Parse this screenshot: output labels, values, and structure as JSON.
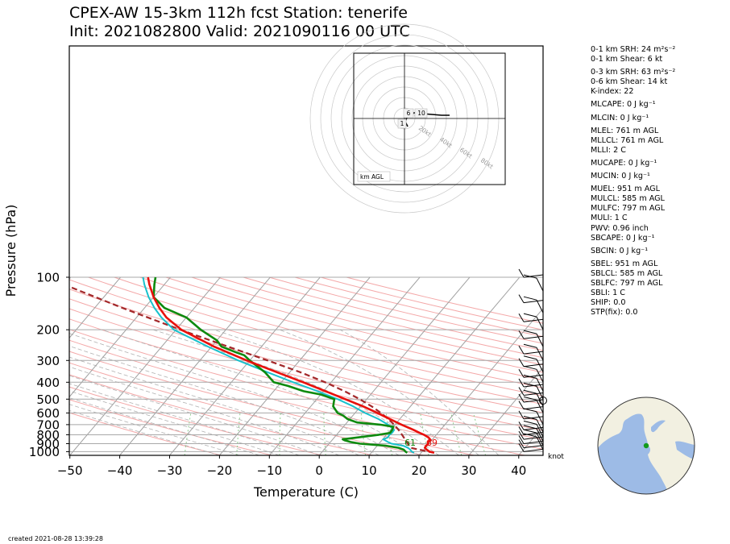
{
  "header": {
    "title_line1": "CPEX-AW 15-3km  112h fcst  Station: tenerife",
    "title_line2": "Init: 2021082800  Valid: 2021090116 00 UTC"
  },
  "footer": {
    "created": "created 2021-08-28 13:39:28"
  },
  "colors": {
    "temperature": "#e8100c",
    "dewpoint": "#0e8a0e",
    "wetbulb": "#19c1cc",
    "parcel": "#a3282a",
    "isotherm": "#a0a0a0",
    "dry_adiabat": "#f4a8a8",
    "moist_adiabat": "#b0b0b0",
    "mixing_ratio": "#8fce8f"
  },
  "indices": [
    {
      "text": "0-1 km SRH: 24 m²s⁻²",
      "gap": false
    },
    {
      "text": "0-1 km Shear: 6 kt",
      "gap": false
    },
    {
      "text": "0-3 km SRH: 63 m²s⁻²",
      "gap": true
    },
    {
      "text": "0-6 km Shear: 14 kt",
      "gap": false
    },
    {
      "text": "K-index: 22",
      "gap": false
    },
    {
      "text": "MLCAPE: 0 J kg⁻¹",
      "gap": true
    },
    {
      "text": "MLCIN: 0 J kg⁻¹",
      "gap": true
    },
    {
      "text": "MLEL: 761 m AGL",
      "gap": true
    },
    {
      "text": "MLLCL: 761 m AGL",
      "gap": false
    },
    {
      "text": "MLLI: 2 C",
      "gap": false
    },
    {
      "text": "MUCAPE: 0 J kg⁻¹",
      "gap": true
    },
    {
      "text": "MUCIN: 0 J kg⁻¹",
      "gap": true
    },
    {
      "text": "MUEL: 951 m AGL",
      "gap": true
    },
    {
      "text": "MULCL: 585 m AGL",
      "gap": false
    },
    {
      "text": "MULFC: 797 m AGL",
      "gap": false
    },
    {
      "text": "MULI: 1 C",
      "gap": false
    },
    {
      "text": "PWV: 0.96 inch",
      "gap": false
    },
    {
      "text": "SBCAPE: 0 J kg⁻¹",
      "gap": false
    },
    {
      "text": "SBCIN: 0 J kg⁻¹",
      "gap": true
    },
    {
      "text": "SBEL: 951 m AGL",
      "gap": true
    },
    {
      "text": "SBLCL: 585 m AGL",
      "gap": false
    },
    {
      "text": "SBLFC: 797 m AGL",
      "gap": false
    },
    {
      "text": "SBLI: 1 C",
      "gap": false
    },
    {
      "text": "SHIP: 0.0",
      "gap": false
    },
    {
      "text": "STP(fix): 0.0",
      "gap": false
    }
  ],
  "hodograph": {
    "ring_labels": [
      "20kt",
      "40kt",
      "60kt",
      "80kt"
    ],
    "height_labels": [
      "6",
      "10",
      "1"
    ],
    "box_label": "km AGL"
  },
  "chart_data": {
    "type": "line",
    "title": "CPEX-AW 15-3km  112h fcst  Station: tenerife",
    "xlabel": "Temperature (C)",
    "ylabel": "Pressure (hPa)",
    "xlim": [
      -50,
      45
    ],
    "ylim": [
      1050,
      100
    ],
    "y_scale": "log",
    "x_ticks": [
      -50,
      -40,
      -30,
      -20,
      -10,
      0,
      10,
      20,
      30,
      40
    ],
    "y_ticks": [
      100,
      200,
      300,
      400,
      500,
      600,
      700,
      800,
      900,
      1000
    ],
    "grid": true,
    "surface_labels": {
      "dewpoint": "61",
      "temperature": "69"
    },
    "wind_unit": "knot",
    "series": [
      {
        "key": "temperature",
        "pressure": [
          1015,
          1000,
          975,
          950,
          925,
          900,
          880,
          860,
          850,
          830,
          800,
          780,
          750,
          700,
          650,
          600,
          550,
          500,
          450,
          400,
          350,
          300,
          250,
          200,
          170,
          150,
          130,
          110,
          100
        ],
        "values": [
          22.6,
          21.5,
          20.6,
          19.9,
          19.8,
          19.9,
          19.5,
          19.8,
          19.5,
          18.9,
          17.5,
          16.3,
          14.6,
          11.3,
          8.0,
          4.5,
          0.5,
          -4.3,
          -9.6,
          -15.6,
          -22.6,
          -30.6,
          -39.5,
          -48.9,
          -54.0,
          -57.0,
          -60.0,
          -63.0,
          -64.5
        ]
      },
      {
        "key": "dewpoint",
        "pressure": [
          1015,
          1000,
          975,
          950,
          925,
          900,
          880,
          860,
          850,
          830,
          800,
          780,
          750,
          720,
          700,
          680,
          650,
          620,
          600,
          550,
          500,
          470,
          450,
          420,
          400,
          350,
          300,
          280,
          270,
          250,
          230,
          200,
          170,
          150,
          130,
          110,
          100
        ],
        "values": [
          17.2,
          16.7,
          16.0,
          14.6,
          11.8,
          6.2,
          4.0,
          2.5,
          2.0,
          4.5,
          8.5,
          10.4,
          10.3,
          10.0,
          7.0,
          2.0,
          -0.5,
          -2.0,
          -3.5,
          -5.5,
          -6.5,
          -10.0,
          -14.0,
          -18.0,
          -21.5,
          -25.0,
          -30.0,
          -32.0,
          -34.0,
          -38.0,
          -40.0,
          -45.0,
          -50.0,
          -56.0,
          -60.0,
          -62.0,
          -63.0
        ]
      },
      {
        "key": "wetbulb",
        "pressure": [
          1015,
          1000,
          975,
          950,
          925,
          900,
          880,
          860,
          850,
          830,
          800,
          780,
          750,
          700,
          650,
          600,
          550,
          500,
          450,
          400,
          350,
          300,
          250,
          200,
          170,
          150,
          130,
          110,
          100
        ],
        "values": [
          18.6,
          17.9,
          17.3,
          16.5,
          15.2,
          12.5,
          11.5,
          10.6,
          10.1,
          10.7,
          10.6,
          10.8,
          10.7,
          8.6,
          5.7,
          2.0,
          -1.5,
          -5.8,
          -11.2,
          -17.6,
          -24.5,
          -32.3,
          -40.7,
          -50.4,
          -55.0,
          -58.0,
          -61.0,
          -64.0,
          -65.5
        ]
      },
      {
        "key": "parcel",
        "pressure": [
          1015,
          1000,
          950,
          900,
          850,
          800,
          750,
          700,
          650,
          600,
          550,
          500,
          450,
          400,
          350,
          300,
          250,
          200,
          150,
          100
        ],
        "values": [
          22.6,
          21.3,
          17.0,
          15.8,
          14.5,
          13.1,
          11.6,
          9.8,
          7.7,
          5.2,
          2.2,
          -1.4,
          -5.8,
          -11.2,
          -17.9,
          -26.4,
          -36.7,
          -49.1,
          -64.4,
          -85.0
        ]
      }
    ]
  }
}
